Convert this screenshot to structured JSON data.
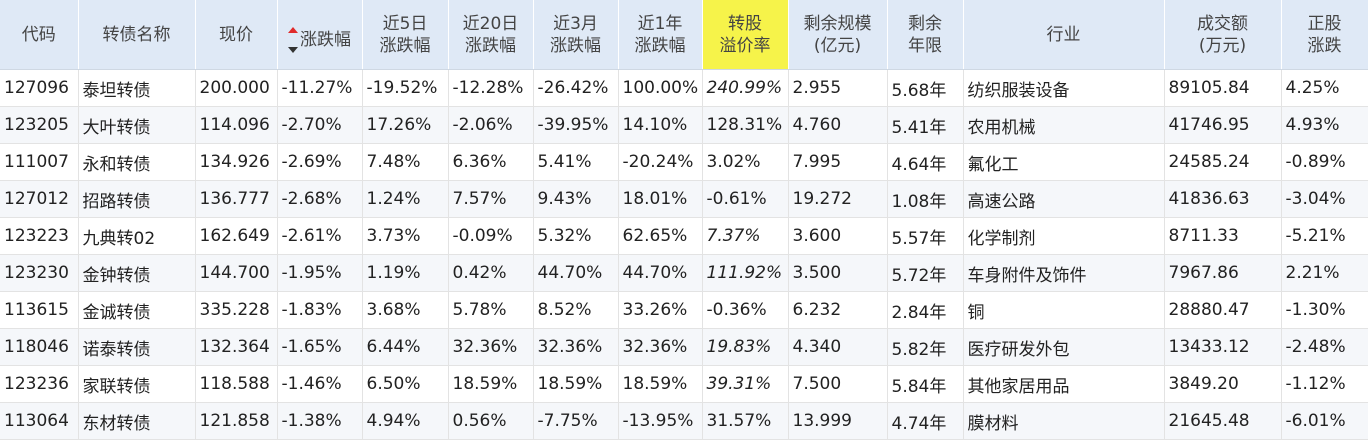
{
  "headers": {
    "code": "代码",
    "name": "转债名称",
    "price": "现价",
    "change": "涨跌幅",
    "chg5d_1": "近5日",
    "chg5d_2": "涨跌幅",
    "chg20d_1": "近20日",
    "chg20d_2": "涨跌幅",
    "chg3m_1": "近3月",
    "chg3m_2": "涨跌幅",
    "chg1y_1": "近1年",
    "chg1y_2": "涨跌幅",
    "premium_1": "转股",
    "premium_2": "溢价率",
    "scale_1": "剩余规模",
    "scale_2": "(亿元)",
    "years_1": "剩余",
    "years_2": "年限",
    "industry": "行业",
    "volume_1": "成交额",
    "volume_2": "(万元)",
    "stock_chg_1": "正股",
    "stock_chg_2": "涨跌"
  },
  "colors": {
    "header_bg": "#dfe9f6",
    "highlight_header": "#f6f34a",
    "up": "#e02b2b",
    "down": "#118a14",
    "code": "#2a5c9e",
    "premium_gray": "#aaaaaa"
  },
  "rows": [
    {
      "code": "127096",
      "name": "泰坦转债",
      "price": "200.000",
      "change": "-11.27%",
      "chg5d": "-19.52%",
      "chg20d": "-12.28%",
      "chg3m": "-26.42%",
      "chg1y": "100.00%",
      "premium": "240.99%",
      "scale": "2.955",
      "years": "5.68年",
      "industry": "纺织服装设备",
      "volume": "89105.84",
      "stock_chg": "4.25%"
    },
    {
      "code": "123205",
      "name": "大叶转债",
      "price": "114.096",
      "change": "-2.70%",
      "chg5d": "17.26%",
      "chg20d": "-2.06%",
      "chg3m": "-39.95%",
      "chg1y": "14.10%",
      "premium": "128.31%",
      "scale": "4.760",
      "years": "5.41年",
      "industry": "农用机械",
      "volume": "41746.95",
      "stock_chg": "4.93%"
    },
    {
      "code": "111007",
      "name": "永和转债",
      "price": "134.926",
      "change": "-2.69%",
      "chg5d": "7.48%",
      "chg20d": "6.36%",
      "chg3m": "5.41%",
      "chg1y": "-20.24%",
      "premium": "3.02%",
      "scale": "7.995",
      "years": "4.64年",
      "industry": "氟化工",
      "volume": "24585.24",
      "stock_chg": "-0.89%"
    },
    {
      "code": "127012",
      "name": "招路转债",
      "price": "136.777",
      "change": "-2.68%",
      "chg5d": "1.24%",
      "chg20d": "7.57%",
      "chg3m": "9.43%",
      "chg1y": "18.01%",
      "premium": "-0.61%",
      "scale": "19.272",
      "years": "1.08年",
      "industry": "高速公路",
      "volume": "41836.63",
      "stock_chg": "-3.04%"
    },
    {
      "code": "123223",
      "name": "九典转02",
      "price": "162.649",
      "change": "-2.61%",
      "chg5d": "3.73%",
      "chg20d": "-0.09%",
      "chg3m": "5.32%",
      "chg1y": "62.65%",
      "premium": "7.37%",
      "scale": "3.600",
      "years": "5.57年",
      "industry": "化学制剂",
      "volume": "8711.33",
      "stock_chg": "-5.21%"
    },
    {
      "code": "123230",
      "name": "金钟转债",
      "price": "144.700",
      "change": "-1.95%",
      "chg5d": "1.19%",
      "chg20d": "0.42%",
      "chg3m": "44.70%",
      "chg1y": "44.70%",
      "premium": "111.92%",
      "scale": "3.500",
      "years": "5.72年",
      "industry": "车身附件及饰件",
      "volume": "7967.86",
      "stock_chg": "2.21%"
    },
    {
      "code": "113615",
      "name": "金诚转债",
      "price": "335.228",
      "change": "-1.83%",
      "chg5d": "3.68%",
      "chg20d": "5.78%",
      "chg3m": "8.52%",
      "chg1y": "33.26%",
      "premium": "-0.36%",
      "scale": "6.232",
      "years": "2.84年",
      "industry": "铜",
      "volume": "28880.47",
      "stock_chg": "-1.30%"
    },
    {
      "code": "118046",
      "name": "诺泰转债",
      "price": "132.364",
      "change": "-1.65%",
      "chg5d": "6.44%",
      "chg20d": "32.36%",
      "chg3m": "32.36%",
      "chg1y": "32.36%",
      "premium": "19.83%",
      "scale": "4.340",
      "years": "5.82年",
      "industry": "医疗研发外包",
      "volume": "13433.12",
      "stock_chg": "-2.48%"
    },
    {
      "code": "123236",
      "name": "家联转债",
      "price": "118.588",
      "change": "-1.46%",
      "chg5d": "6.50%",
      "chg20d": "18.59%",
      "chg3m": "18.59%",
      "chg1y": "18.59%",
      "premium": "39.31%",
      "scale": "7.500",
      "years": "5.84年",
      "industry": "其他家居用品",
      "volume": "3849.20",
      "stock_chg": "-1.12%"
    },
    {
      "code": "113064",
      "name": "东材转债",
      "price": "121.858",
      "change": "-1.38%",
      "chg5d": "4.94%",
      "chg20d": "0.56%",
      "chg3m": "-7.75%",
      "chg1y": "-13.95%",
      "premium": "31.57%",
      "scale": "13.999",
      "years": "4.74年",
      "industry": "膜材料",
      "volume": "21645.48",
      "stock_chg": "-6.01%"
    }
  ]
}
